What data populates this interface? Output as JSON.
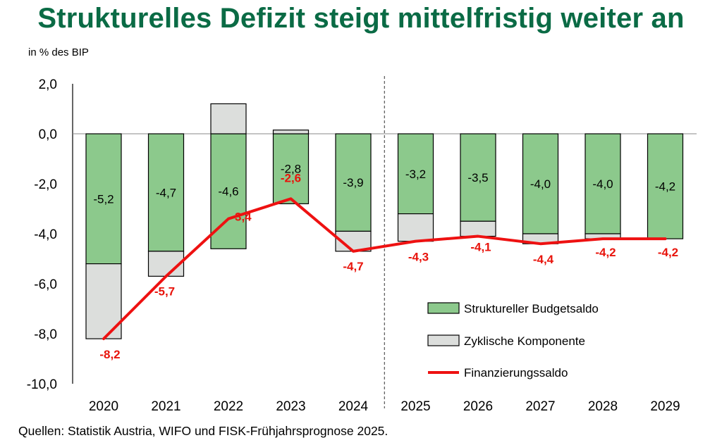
{
  "title": "Strukturelles Defizit steigt mittelfristig weiter an",
  "unit": "in % des BIP",
  "source": "Quellen: Statistik Austria, WIFO und FISK-Frühjahrsprognose 2025.",
  "colors": {
    "struct": "#8cc98c",
    "cyclical": "#dcdedc",
    "line": "#ee1111",
    "line_labels": "#e8140c",
    "title": "#0a6b45"
  },
  "chart_data": {
    "type": "bar",
    "categories": [
      "2020",
      "2021",
      "2022",
      "2023",
      "2024",
      "2025",
      "2026",
      "2027",
      "2028",
      "2029"
    ],
    "ylim": [
      -10,
      2
    ],
    "yticks": [
      "2,0",
      "0,0",
      "-2,0",
      "-4,0",
      "-6,0",
      "-8,0",
      "-10,0"
    ],
    "ylabel": "in % des BIP",
    "forecast_divider_after": "2024",
    "series": [
      {
        "name": "Struktureller Budgetsaldo",
        "kind": "stacked-bar",
        "values": [
          -5.2,
          -4.7,
          -4.6,
          -2.8,
          -3.9,
          -3.2,
          -3.5,
          -4.0,
          -4.0,
          -4.2
        ],
        "labels": [
          "-5,2",
          "-4,7",
          "-4,6",
          "-2,8",
          "-3,9",
          "-3,2",
          "-3,5",
          "-4,0",
          "-4,0",
          "-4,2"
        ]
      },
      {
        "name": "Zyklische Komponente",
        "kind": "stacked-bar",
        "values": [
          -3.0,
          -1.0,
          1.2,
          0.15,
          -0.8,
          -1.1,
          -0.6,
          -0.4,
          -0.2,
          0.0
        ]
      },
      {
        "name": "Finanzierungssaldo",
        "kind": "line",
        "values": [
          -8.2,
          -5.7,
          -3.4,
          -2.6,
          -4.7,
          -4.3,
          -4.1,
          -4.4,
          -4.2,
          -4.2
        ],
        "labels": [
          "-8,2",
          "-5,7",
          "-3,4",
          "-2,6",
          "-4,7",
          "-4,3",
          "-4,1",
          "-4,4",
          "-4,2",
          "-4,2"
        ]
      }
    ],
    "legend": [
      "Struktureller Budgetsaldo",
      "Zyklische Komponente",
      "Finanzierungssaldo"
    ],
    "legend_position": "lower-right"
  }
}
